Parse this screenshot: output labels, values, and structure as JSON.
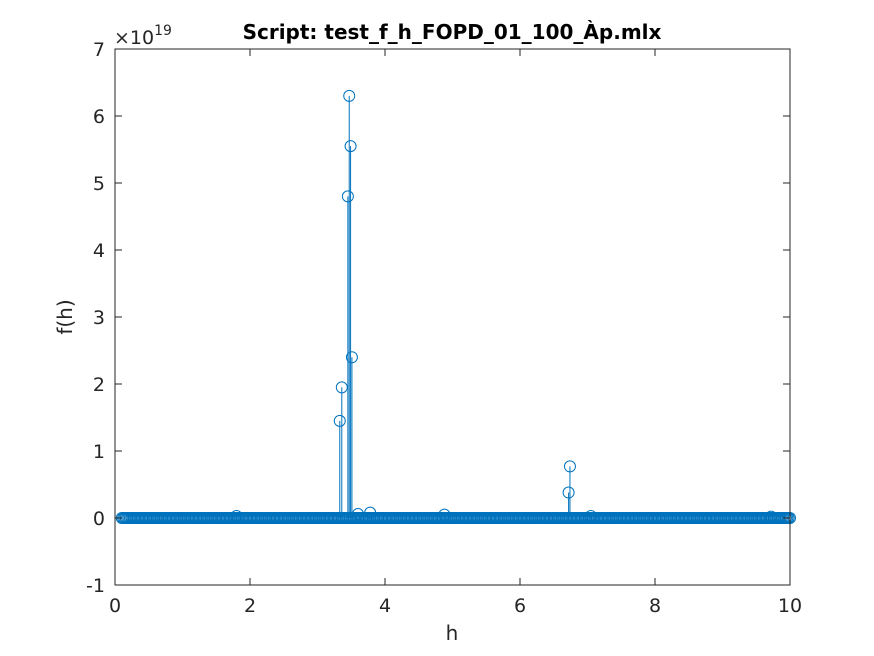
{
  "chart_data": {
    "type": "scatter",
    "style": "stem",
    "title": "Script: test_f_h_FOPD_01_100_Àp.mlx",
    "xlabel": "h",
    "ylabel": "f(h)",
    "xlim": [
      0,
      10
    ],
    "ylim": [
      -1,
      7
    ],
    "y_exponent_label": {
      "base": "×10",
      "power": "19"
    },
    "xticks": [
      "0",
      "2",
      "4",
      "6",
      "8",
      "10"
    ],
    "yticks": [
      "-1",
      "0",
      "1",
      "2",
      "3",
      "4",
      "5",
      "6",
      "7"
    ],
    "grid": false,
    "series_color": "#0072BD",
    "baseline_range": [
      0.1,
      10.0
    ],
    "baseline_step": 0.02,
    "stems": [
      {
        "x": 1.8,
        "y": 0.03
      },
      {
        "x": 3.33,
        "y": 1.45
      },
      {
        "x": 3.36,
        "y": 1.95
      },
      {
        "x": 3.45,
        "y": 4.8
      },
      {
        "x": 3.47,
        "y": 6.3
      },
      {
        "x": 3.49,
        "y": 5.55
      },
      {
        "x": 3.51,
        "y": 2.4
      },
      {
        "x": 3.6,
        "y": 0.06
      },
      {
        "x": 3.78,
        "y": 0.08
      },
      {
        "x": 4.88,
        "y": 0.05
      },
      {
        "x": 6.72,
        "y": 0.38
      },
      {
        "x": 6.74,
        "y": 0.77
      },
      {
        "x": 7.05,
        "y": 0.03
      },
      {
        "x": 9.72,
        "y": 0.02
      }
    ]
  }
}
